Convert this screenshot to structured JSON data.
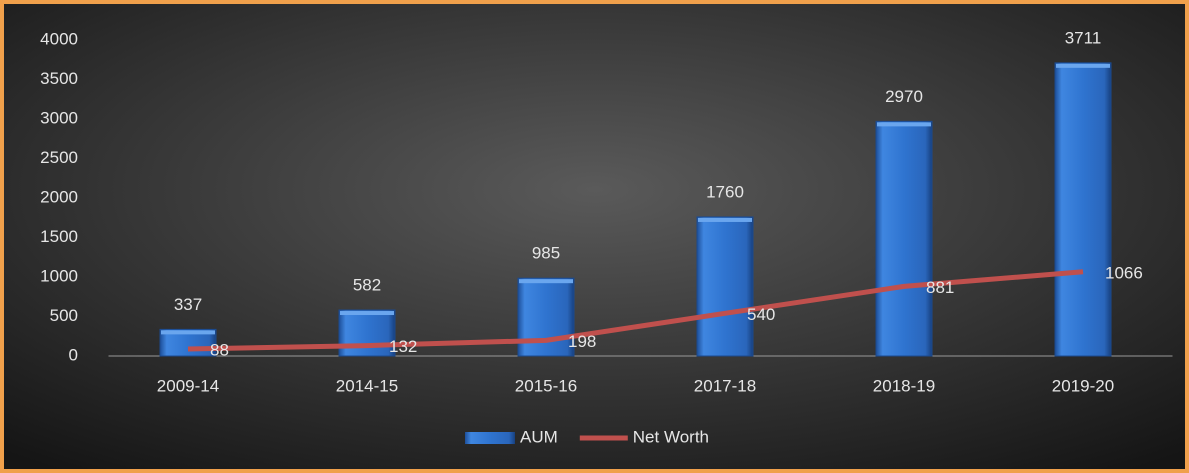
{
  "chart_data": {
    "type": "combo",
    "categories": [
      "2009-14",
      "2014-15",
      "2015-16",
      "2017-18",
      "2018-19",
      "2019-20"
    ],
    "series": [
      {
        "name": "AUM",
        "type": "bar",
        "color": "#2f74d0",
        "values": [
          337,
          582,
          985,
          1760,
          2970,
          3711
        ]
      },
      {
        "name": "Net Worth",
        "type": "line",
        "color": "#c0504d",
        "values": [
          88,
          132,
          198,
          540,
          881,
          1066
        ]
      }
    ],
    "ylim": [
      0,
      4000
    ],
    "yticks": [
      0,
      500,
      1000,
      1500,
      2000,
      2500,
      3000,
      3500,
      4000
    ],
    "legend": "bottom"
  }
}
